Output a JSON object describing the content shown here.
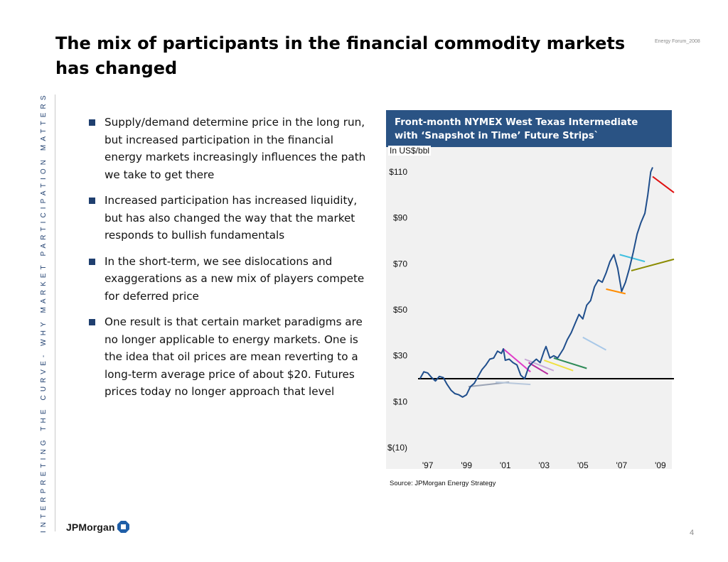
{
  "slide": {
    "title": "The mix of participants in the financial commodity markets has changed",
    "forum_tag": "Energy Forum_2008",
    "side_text": "INTERPRETING THE CURVE- WHY MARKET PARTICIPATION MATTERS",
    "page_number": "4",
    "logo_text": "JPMorgan",
    "accent_color": "#1f3f6f"
  },
  "bullets": [
    "Supply/demand determine price in the long run, but increased participation in the financial energy markets increasingly influences the path we take to get there",
    "Increased participation has increased liquidity, but has also changed the way that the market responds to bullish fundamentals",
    "In the short-term, we see dislocations and exaggerations as a new mix of players compete for deferred price",
    "One result is that certain market paradigms are no longer applicable to energy markets.  One is the idea that oil prices are mean reverting to a long-term average price of about $20.  Futures prices today no longer approach that level"
  ],
  "chart": {
    "header": "Front-month NYMEX West Texas Intermediate with ‘Snapshot in Time’ Future Strips`",
    "unit_label": "In US$/bbl",
    "source": "Source: JPMorgan Energy Strategy"
  },
  "chart_data": {
    "type": "line",
    "title": "Front-month NYMEX West Texas Intermediate with ‘Snapshot in Time’ Future Strips`",
    "ylabel": "In US$/bbl",
    "ylim": [
      -10,
      110
    ],
    "xlim": [
      1996.5,
      2009.7
    ],
    "yticks": [
      "$110",
      "$90",
      "$70",
      "$50",
      "$30",
      "$10",
      "$(10)"
    ],
    "ytick_values": [
      110,
      90,
      70,
      50,
      30,
      10,
      -10
    ],
    "xticks": [
      "'97",
      "'99",
      "'01",
      "'03",
      "'05",
      "'07",
      "'09"
    ],
    "xtick_values": [
      1997,
      1999,
      2001,
      2003,
      2005,
      2007,
      2009
    ],
    "reference_line": {
      "y": 20,
      "color": "#000000"
    },
    "series": [
      {
        "color": "#1f4e8c",
        "x": [
          1996.6,
          1996.8,
          1997.0,
          1997.2,
          1997.4,
          1997.6,
          1997.8,
          1998.0,
          1998.2,
          1998.4,
          1998.6,
          1998.8,
          1999.0,
          1999.2,
          1999.4,
          1999.6,
          1999.8,
          2000.0,
          2000.2,
          2000.4,
          2000.6,
          2000.8,
          2000.9,
          2001.0,
          2001.2,
          2001.4,
          2001.6,
          2001.8,
          2002.0,
          2002.2,
          2002.4,
          2002.6,
          2002.8,
          2003.0,
          2003.1,
          2003.3,
          2003.5,
          2003.7,
          2004.0,
          2004.2,
          2004.4,
          2004.6,
          2004.8,
          2005.0,
          2005.2,
          2005.4,
          2005.6,
          2005.8,
          2006.0,
          2006.2,
          2006.4,
          2006.6,
          2006.8,
          2007.0,
          2007.2,
          2007.4,
          2007.6,
          2007.8,
          2008.0,
          2008.2,
          2008.35,
          2008.5,
          2008.6
        ],
        "y": [
          20.0,
          23.0,
          22.5,
          20.5,
          19.0,
          21.0,
          20.5,
          17.5,
          15.0,
          13.5,
          13.0,
          12.0,
          13.0,
          16.5,
          18.0,
          21.0,
          24.0,
          26.0,
          28.5,
          29.0,
          32.0,
          31.0,
          33.0,
          28.0,
          28.5,
          27.0,
          26.0,
          21.5,
          20.0,
          25.0,
          27.0,
          28.5,
          27.0,
          32.0,
          34.0,
          29.0,
          30.0,
          29.0,
          33.0,
          37.0,
          40.0,
          44.0,
          48.0,
          46.0,
          52.0,
          54.0,
          60.0,
          63.0,
          62.0,
          66.0,
          71.0,
          74.0,
          68.0,
          58.0,
          62.0,
          68.0,
          75.0,
          83.0,
          88.0,
          92.0,
          100.0,
          110.0,
          112.0
        ]
      }
    ],
    "strips": [
      {
        "color": "#9aa3b5",
        "x": [
          1999.1,
          2001.2
        ],
        "y": [
          16.5,
          18.5
        ]
      },
      {
        "color": "#b8c8dc",
        "x": [
          2000.5,
          2002.3
        ],
        "y": [
          18.5,
          17.5
        ]
      },
      {
        "color": "#e03cc8",
        "x": [
          2000.9,
          2002.3
        ],
        "y": [
          33.0,
          23.0
        ]
      },
      {
        "color": "#c9a8d8",
        "x": [
          2002.0,
          2003.5
        ],
        "y": [
          28.5,
          23.5
        ]
      },
      {
        "color": "#b82a9e",
        "x": [
          2002.2,
          2003.2
        ],
        "y": [
          27.0,
          22.0
        ]
      },
      {
        "color": "#f0e040",
        "x": [
          2003.0,
          2004.5
        ],
        "y": [
          28.0,
          23.5
        ]
      },
      {
        "color": "#2e8b57",
        "x": [
          2003.5,
          2005.2
        ],
        "y": [
          29.0,
          24.5
        ]
      },
      {
        "color": "#a8c8e8",
        "x": [
          2005.0,
          2006.2
        ],
        "y": [
          38.0,
          32.5
        ]
      },
      {
        "color": "#ff8c00",
        "x": [
          2006.2,
          2007.2
        ],
        "y": [
          59.0,
          57.0
        ]
      },
      {
        "color": "#40c0e0",
        "x": [
          2006.9,
          2008.2
        ],
        "y": [
          74.0,
          71.0
        ]
      },
      {
        "color": "#8b8b00",
        "x": [
          2007.5,
          2009.7
        ],
        "y": [
          67.0,
          72.0
        ]
      },
      {
        "color": "#e01010",
        "x": [
          2008.6,
          2009.7
        ],
        "y": [
          108.0,
          101.0
        ]
      }
    ]
  }
}
